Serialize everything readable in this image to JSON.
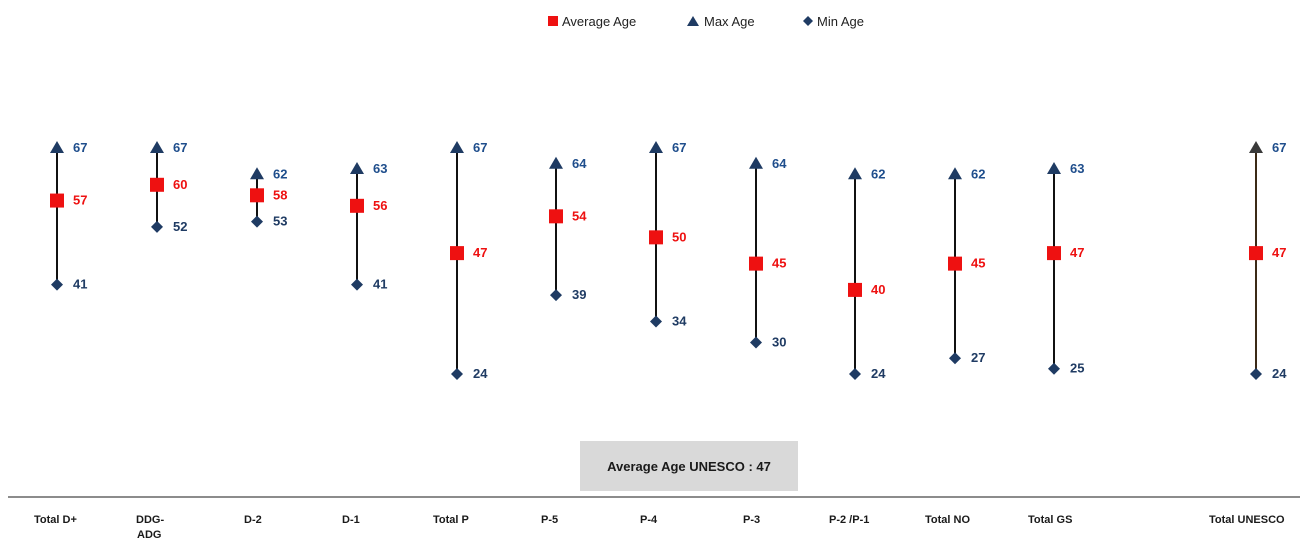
{
  "legend": {
    "average_label": "Average Age",
    "max_label": "Max Age",
    "min_label": "Min Age"
  },
  "summary_box": "Average Age UNESCO : 47",
  "colors": {
    "average": "#ee1111",
    "max": "#1f3b63",
    "min": "#1f3b63",
    "line": "#111111",
    "line_highlight": "#3b2a17",
    "min_label": "#1f3b63",
    "max_label": "#1f4e8c",
    "avg_label": "#ee1111"
  },
  "chart_data": {
    "type": "scatter",
    "title": "",
    "xlabel": "",
    "ylabel": "",
    "ylim": [
      24,
      67
    ],
    "categories": [
      "Total D+",
      "DDG-ADG",
      "D-2",
      "D-1",
      "Total P",
      "P-5",
      "P-4",
      "P-3",
      "P-2 /P-1",
      "Total NO",
      "Total GS",
      "Total UNESCO"
    ],
    "series": [
      {
        "name": "Average Age",
        "marker": "square",
        "values": [
          57,
          60,
          58,
          56,
          47,
          54,
          50,
          45,
          40,
          45,
          47,
          47
        ]
      },
      {
        "name": "Max Age",
        "marker": "triangle",
        "values": [
          67,
          67,
          62,
          63,
          67,
          64,
          67,
          64,
          62,
          62,
          63,
          67
        ]
      },
      {
        "name": "Min Age",
        "marker": "diamond",
        "values": [
          41,
          52,
          53,
          41,
          24,
          39,
          34,
          30,
          24,
          27,
          25,
          24
        ]
      }
    ],
    "grid": false,
    "legend_position": "top-center"
  }
}
